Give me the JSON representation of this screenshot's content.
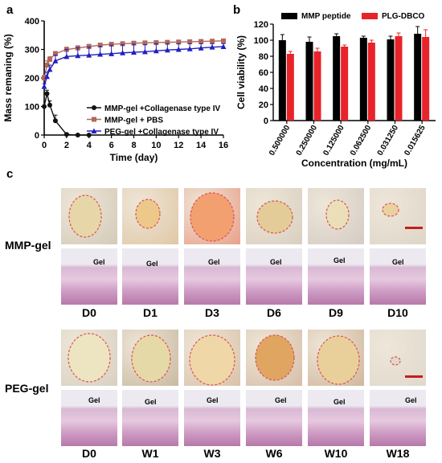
{
  "panels": {
    "a": "a",
    "b": "b",
    "c": "c"
  },
  "chart_data": [
    {
      "type": "line",
      "xlabel": "Time (day)",
      "ylabel": "Mass remaning (%)",
      "xlim": [
        0,
        16
      ],
      "ylim": [
        0,
        400
      ],
      "xticks": [
        0,
        2,
        4,
        6,
        8,
        10,
        12,
        14,
        16
      ],
      "yticks": [
        0,
        100,
        200,
        300,
        400
      ],
      "legend_position": "center-right",
      "series": [
        {
          "name": "MMP-gel +Collagenase type IV",
          "color": "#111111",
          "marker": "circle",
          "x": [
            0,
            0.25,
            0.5,
            1,
            2,
            3,
            4
          ],
          "y": [
            100,
            145,
            105,
            50,
            2,
            0,
            0
          ],
          "err": [
            0,
            12,
            15,
            20,
            5,
            0,
            0
          ]
        },
        {
          "name": "MMP-gel + PBS",
          "color": "#b0685a",
          "marker": "square",
          "x": [
            0,
            0.25,
            0.5,
            1,
            2,
            3,
            4,
            5,
            6,
            7,
            8,
            9,
            10,
            11,
            12,
            13,
            14,
            15,
            16
          ],
          "y": [
            200,
            245,
            265,
            285,
            300,
            305,
            310,
            315,
            318,
            320,
            322,
            323,
            324,
            325,
            326,
            327,
            328,
            329,
            330
          ],
          "err": [
            10,
            15,
            10,
            8,
            8,
            8,
            8,
            7,
            7,
            7,
            6,
            6,
            6,
            6,
            6,
            6,
            5,
            5,
            5
          ]
        },
        {
          "name": "PEG-gel +Collagenase type IV",
          "color": "#2020c0",
          "marker": "triangle",
          "x": [
            0,
            0.25,
            0.5,
            1,
            2,
            3,
            4,
            5,
            6,
            7,
            8,
            9,
            10,
            11,
            12,
            13,
            14,
            15,
            16
          ],
          "y": [
            170,
            205,
            230,
            260,
            275,
            278,
            280,
            283,
            285,
            288,
            290,
            292,
            295,
            298,
            300,
            302,
            305,
            308,
            310
          ],
          "err": [
            10,
            15,
            15,
            20,
            25,
            28,
            28,
            28,
            30,
            28,
            28,
            25,
            25,
            22,
            20,
            18,
            15,
            12,
            10
          ]
        }
      ]
    },
    {
      "type": "bar",
      "xlabel": "Concentration (mg/mL)",
      "ylabel": "Cell viability (%)",
      "ylim": [
        0,
        120
      ],
      "yticks": [
        0,
        20,
        40,
        60,
        80,
        100,
        120
      ],
      "legend_position": "top",
      "categories": [
        "0.500000",
        "0.250000",
        "0.125000",
        "0.062500",
        "0.031250",
        "0.015625"
      ],
      "series": [
        {
          "name": "MMP peptide",
          "color": "#000000",
          "values": [
            100,
            98,
            105,
            103,
            101,
            108
          ],
          "err": [
            7,
            6,
            3,
            2,
            4,
            9
          ]
        },
        {
          "name": "PLG-DBCO",
          "color": "#e8232a",
          "values": [
            83,
            86,
            92,
            97,
            105,
            104
          ],
          "err": [
            3,
            4,
            2,
            3,
            4,
            9
          ]
        }
      ]
    }
  ],
  "figure_c": {
    "rows": [
      {
        "label": "MMP-gel",
        "days": [
          "D0",
          "D1",
          "D3",
          "D6",
          "D9",
          "D10"
        ]
      },
      {
        "label": "PEG-gel",
        "days": [
          "D0",
          "W1",
          "W3",
          "W6",
          "W10",
          "W18"
        ]
      }
    ],
    "gel_label": "Gel",
    "colors": {
      "skin": "#d8d2c8",
      "gel_outline": "#e05050",
      "scale_bar": "#c0201c",
      "tissue": "#c486b6"
    }
  }
}
